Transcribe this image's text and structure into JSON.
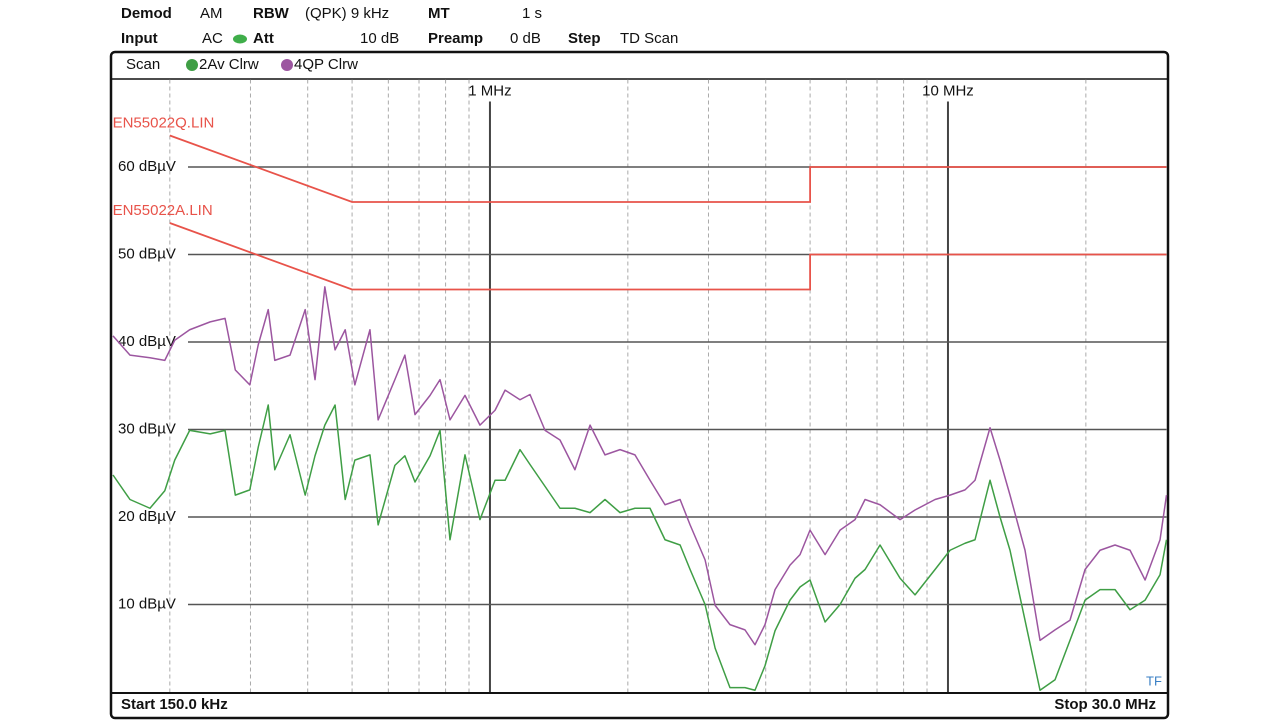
{
  "chart_data": {
    "type": "line",
    "log_x": true,
    "grid": true,
    "header": [
      {
        "label": "Demod",
        "value": "AM"
      },
      {
        "label": "RBW",
        "value": "(QPK) 9 kHz"
      },
      {
        "label": "MT",
        "value": "1 s"
      },
      {
        "label": "Input",
        "value": "AC"
      },
      {
        "label": "Att",
        "value": "10 dB"
      },
      {
        "label": "Preamp",
        "value": "0 dB"
      },
      {
        "label": "Step",
        "value": "TD Scan"
      }
    ],
    "legend_title": "Scan",
    "xlim": [
      150000,
      30000000
    ],
    "ylim": [
      0,
      70
    ],
    "xticks": [
      {
        "value": 1000000,
        "label": "1 MHz"
      },
      {
        "value": 10000000,
        "label": "10 MHz"
      }
    ],
    "xminor": [
      200000,
      300000,
      400000,
      500000,
      600000,
      700000,
      800000,
      900000,
      2000000,
      3000000,
      4000000,
      5000000,
      6000000,
      7000000,
      8000000,
      9000000,
      20000000
    ],
    "yticks": [
      {
        "value": 10,
        "label": "10 dBµV"
      },
      {
        "value": 20,
        "label": "20 dBµV"
      },
      {
        "value": 30,
        "label": "30 dBµV"
      },
      {
        "value": 40,
        "label": "40 dBµV"
      },
      {
        "value": 50,
        "label": "50 dBµV"
      },
      {
        "value": 60,
        "label": "60 dBµV"
      }
    ],
    "x": [
      150300,
      163700,
      181000,
      195000,
      205000,
      221000,
      245000,
      264000,
      278000,
      299000,
      312000,
      328000,
      339000,
      366000,
      395000,
      415000,
      436000,
      459000,
      483000,
      507000,
      547000,
      570000,
      620000,
      652000,
      686000,
      740000,
      778000,
      818000,
      882000,
      951000,
      1026000,
      1079000,
      1163000,
      1223000,
      1319000,
      1422000,
      1533000,
      1654000,
      1783000,
      1923000,
      2073000,
      2236000,
      2411000,
      2601000,
      2735000,
      2949000,
      3102000,
      3342000,
      3604000,
      3790000,
      3986000,
      4192000,
      4520000,
      4753000,
      4998000,
      5391000,
      5813000,
      6267000,
      6591000,
      7107000,
      7860000,
      8474000,
      9371000,
      10104000,
      10895000,
      11457000,
      12354000,
      12991000,
      13660000,
      14730000,
      15885000,
      17130000,
      18465000,
      19920000,
      21480000,
      23160000,
      24975000,
      26940000,
      29040000,
      30000000
    ],
    "series": [
      {
        "name": "2Av Clrw",
        "color": "#3f9e45",
        "values": [
          24.8,
          22.0,
          21.0,
          23.0,
          26.5,
          29.9,
          29.5,
          29.9,
          22.5,
          23.1,
          28.0,
          32.8,
          25.4,
          29.4,
          22.5,
          27.0,
          30.5,
          32.8,
          22.0,
          26.5,
          27.1,
          19.1,
          25.9,
          27.0,
          24.0,
          27.0,
          29.9,
          17.4,
          27.1,
          19.7,
          24.2,
          24.2,
          27.7,
          26.0,
          23.5,
          21.0,
          21.0,
          20.5,
          22.0,
          20.5,
          21.0,
          21.0,
          17.4,
          16.8,
          14.0,
          10.0,
          5.0,
          0.5,
          0.5,
          0.2,
          3.0,
          7.0,
          10.5,
          12.0,
          12.8,
          8.0,
          10.0,
          13.0,
          14.0,
          16.8,
          13.0,
          11.1,
          14.0,
          16.2,
          17.0,
          17.4,
          24.2,
          20.0,
          16.2,
          8.2,
          0.2,
          1.4,
          5.9,
          10.5,
          11.7,
          11.7,
          9.4,
          10.5,
          13.4,
          17.4
        ]
      },
      {
        "name": "4QP Clrw",
        "color": "#9c56a0",
        "values": [
          40.7,
          38.5,
          38.2,
          37.9,
          40.2,
          41.4,
          42.3,
          42.7,
          36.8,
          35.1,
          39.7,
          43.7,
          37.9,
          38.5,
          43.7,
          35.7,
          46.3,
          39.1,
          41.4,
          35.1,
          41.4,
          31.1,
          35.7,
          38.5,
          31.7,
          33.9,
          35.7,
          31.1,
          33.9,
          30.5,
          32.2,
          34.5,
          33.4,
          34.0,
          29.9,
          28.8,
          25.4,
          30.5,
          27.1,
          27.7,
          27.1,
          24.2,
          21.4,
          22.0,
          19.1,
          15.1,
          9.9,
          7.7,
          7.1,
          5.4,
          7.7,
          11.7,
          14.5,
          15.7,
          18.5,
          15.7,
          18.5,
          19.7,
          22.0,
          21.4,
          19.7,
          20.8,
          22.0,
          22.5,
          23.1,
          24.2,
          30.2,
          26.5,
          22.5,
          16.2,
          5.9,
          7.1,
          8.2,
          14.0,
          16.2,
          16.8,
          16.2,
          12.8,
          17.4,
          22.5
        ]
      }
    ],
    "limit_lines": [
      {
        "name": "EN55022Q.LIN",
        "color": "#e8534a",
        "x": [
          200000,
          500000,
          5000000,
          5000000,
          30000000
        ],
        "values": [
          63.6,
          56,
          56,
          60,
          60
        ]
      },
      {
        "name": "EN55022A.LIN",
        "color": "#e8534a",
        "x": [
          200000,
          500000,
          5000000,
          5000000,
          30000000
        ],
        "values": [
          53.6,
          46,
          46,
          50,
          50
        ]
      }
    ],
    "start_label": "Start 150.0 kHz",
    "stop_label": "Stop 30.0 MHz",
    "corner_label": "TF"
  }
}
